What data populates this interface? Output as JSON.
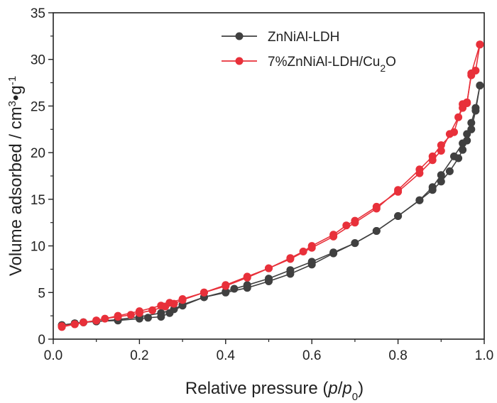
{
  "chart_data": {
    "type": "line",
    "xlabel": "Relative pressure (p/p0)",
    "ylabel": "Volume adsorbed / cm3•g-1",
    "xlim": [
      0.0,
      1.0
    ],
    "ylim": [
      0,
      35
    ],
    "x_ticks": [
      0.0,
      0.2,
      0.4,
      0.6,
      0.8,
      1.0
    ],
    "x_tick_labels": [
      "0.0",
      "0.2",
      "0.4",
      "0.6",
      "0.8",
      "1.0"
    ],
    "y_ticks": [
      0,
      5,
      10,
      15,
      20,
      25,
      30,
      35
    ],
    "y_tick_labels": [
      "0",
      "5",
      "10",
      "15",
      "20",
      "25",
      "30",
      "35"
    ],
    "grid": false,
    "legend_position": "top-right",
    "legend": [
      {
        "label": "ZnNiAl-LDH",
        "color": "#404040"
      },
      {
        "label": "7%ZnNiAl-LDH/Cu2O",
        "color": "#e8303a"
      }
    ],
    "series": [
      {
        "name": "ZnNiAl-LDH",
        "color": "#404040",
        "branches": [
          {
            "x": [
              0.02,
              0.05,
              0.07,
              0.1,
              0.15,
              0.2,
              0.25,
              0.28,
              0.3,
              0.35,
              0.4,
              0.45,
              0.5,
              0.55,
              0.6,
              0.65,
              0.7,
              0.75,
              0.8,
              0.85,
              0.88,
              0.9,
              0.92,
              0.94,
              0.95,
              0.96,
              0.97,
              0.98,
              0.99
            ],
            "y": [
              1.5,
              1.7,
              1.8,
              1.9,
              2.1,
              2.4,
              2.8,
              3.2,
              3.7,
              4.5,
              5.0,
              5.5,
              6.2,
              7.0,
              8.0,
              9.2,
              10.3,
              11.6,
              13.2,
              14.9,
              16.0,
              16.9,
              18.0,
              19.4,
              20.3,
              21.3,
              22.5,
              24.5,
              27.2
            ]
          },
          {
            "x": [
              0.99,
              0.98,
              0.97,
              0.96,
              0.95,
              0.93,
              0.9,
              0.88,
              0.85,
              0.8,
              0.75,
              0.7,
              0.65,
              0.6,
              0.55,
              0.5,
              0.45,
              0.42,
              0.4,
              0.35,
              0.3,
              0.27,
              0.25,
              0.22,
              0.2,
              0.15,
              0.1,
              0.07,
              0.05,
              0.02
            ],
            "y": [
              27.2,
              24.8,
              23.2,
              22.0,
              21.0,
              19.6,
              17.6,
              16.3,
              14.9,
              13.2,
              11.6,
              10.3,
              9.3,
              8.3,
              7.4,
              6.5,
              5.8,
              5.4,
              5.1,
              4.5,
              3.6,
              2.8,
              2.4,
              2.3,
              2.2,
              2.0,
              1.9,
              1.8,
              1.7,
              1.5
            ]
          }
        ]
      },
      {
        "name": "7%ZnNiAl-LDH/Cu2O",
        "color": "#e8303a",
        "branches": [
          {
            "x": [
              0.02,
              0.05,
              0.07,
              0.1,
              0.12,
              0.15,
              0.18,
              0.2,
              0.23,
              0.26,
              0.28,
              0.3,
              0.35,
              0.4,
              0.45,
              0.5,
              0.55,
              0.58,
              0.6,
              0.65,
              0.68,
              0.7,
              0.75,
              0.8,
              0.85,
              0.88,
              0.9,
              0.92,
              0.94,
              0.95,
              0.96,
              0.97,
              0.99
            ],
            "y": [
              1.3,
              1.6,
              1.8,
              2.0,
              2.2,
              2.4,
              2.6,
              2.8,
              3.1,
              3.5,
              3.8,
              4.2,
              5.0,
              5.7,
              6.6,
              7.6,
              8.7,
              9.4,
              10.0,
              11.2,
              12.2,
              12.7,
              14.2,
              15.8,
              17.8,
              19.2,
              20.2,
              22.0,
              23.8,
              24.8,
              25.3,
              28.5,
              31.6
            ]
          },
          {
            "x": [
              0.99,
              0.98,
              0.97,
              0.96,
              0.95,
              0.93,
              0.9,
              0.88,
              0.85,
              0.8,
              0.75,
              0.7,
              0.65,
              0.6,
              0.55,
              0.5,
              0.45,
              0.4,
              0.35,
              0.3,
              0.27,
              0.25,
              0.2,
              0.15,
              0.1,
              0.05,
              0.02
            ],
            "y": [
              31.6,
              28.8,
              28.3,
              25.4,
              25.2,
              22.2,
              20.8,
              19.6,
              18.2,
              16.0,
              14.0,
              12.5,
              11.0,
              9.8,
              8.6,
              7.6,
              6.7,
              5.8,
              5.0,
              4.3,
              3.9,
              3.6,
              3.0,
              2.5,
              2.0,
              1.6,
              1.4
            ]
          }
        ]
      }
    ]
  }
}
